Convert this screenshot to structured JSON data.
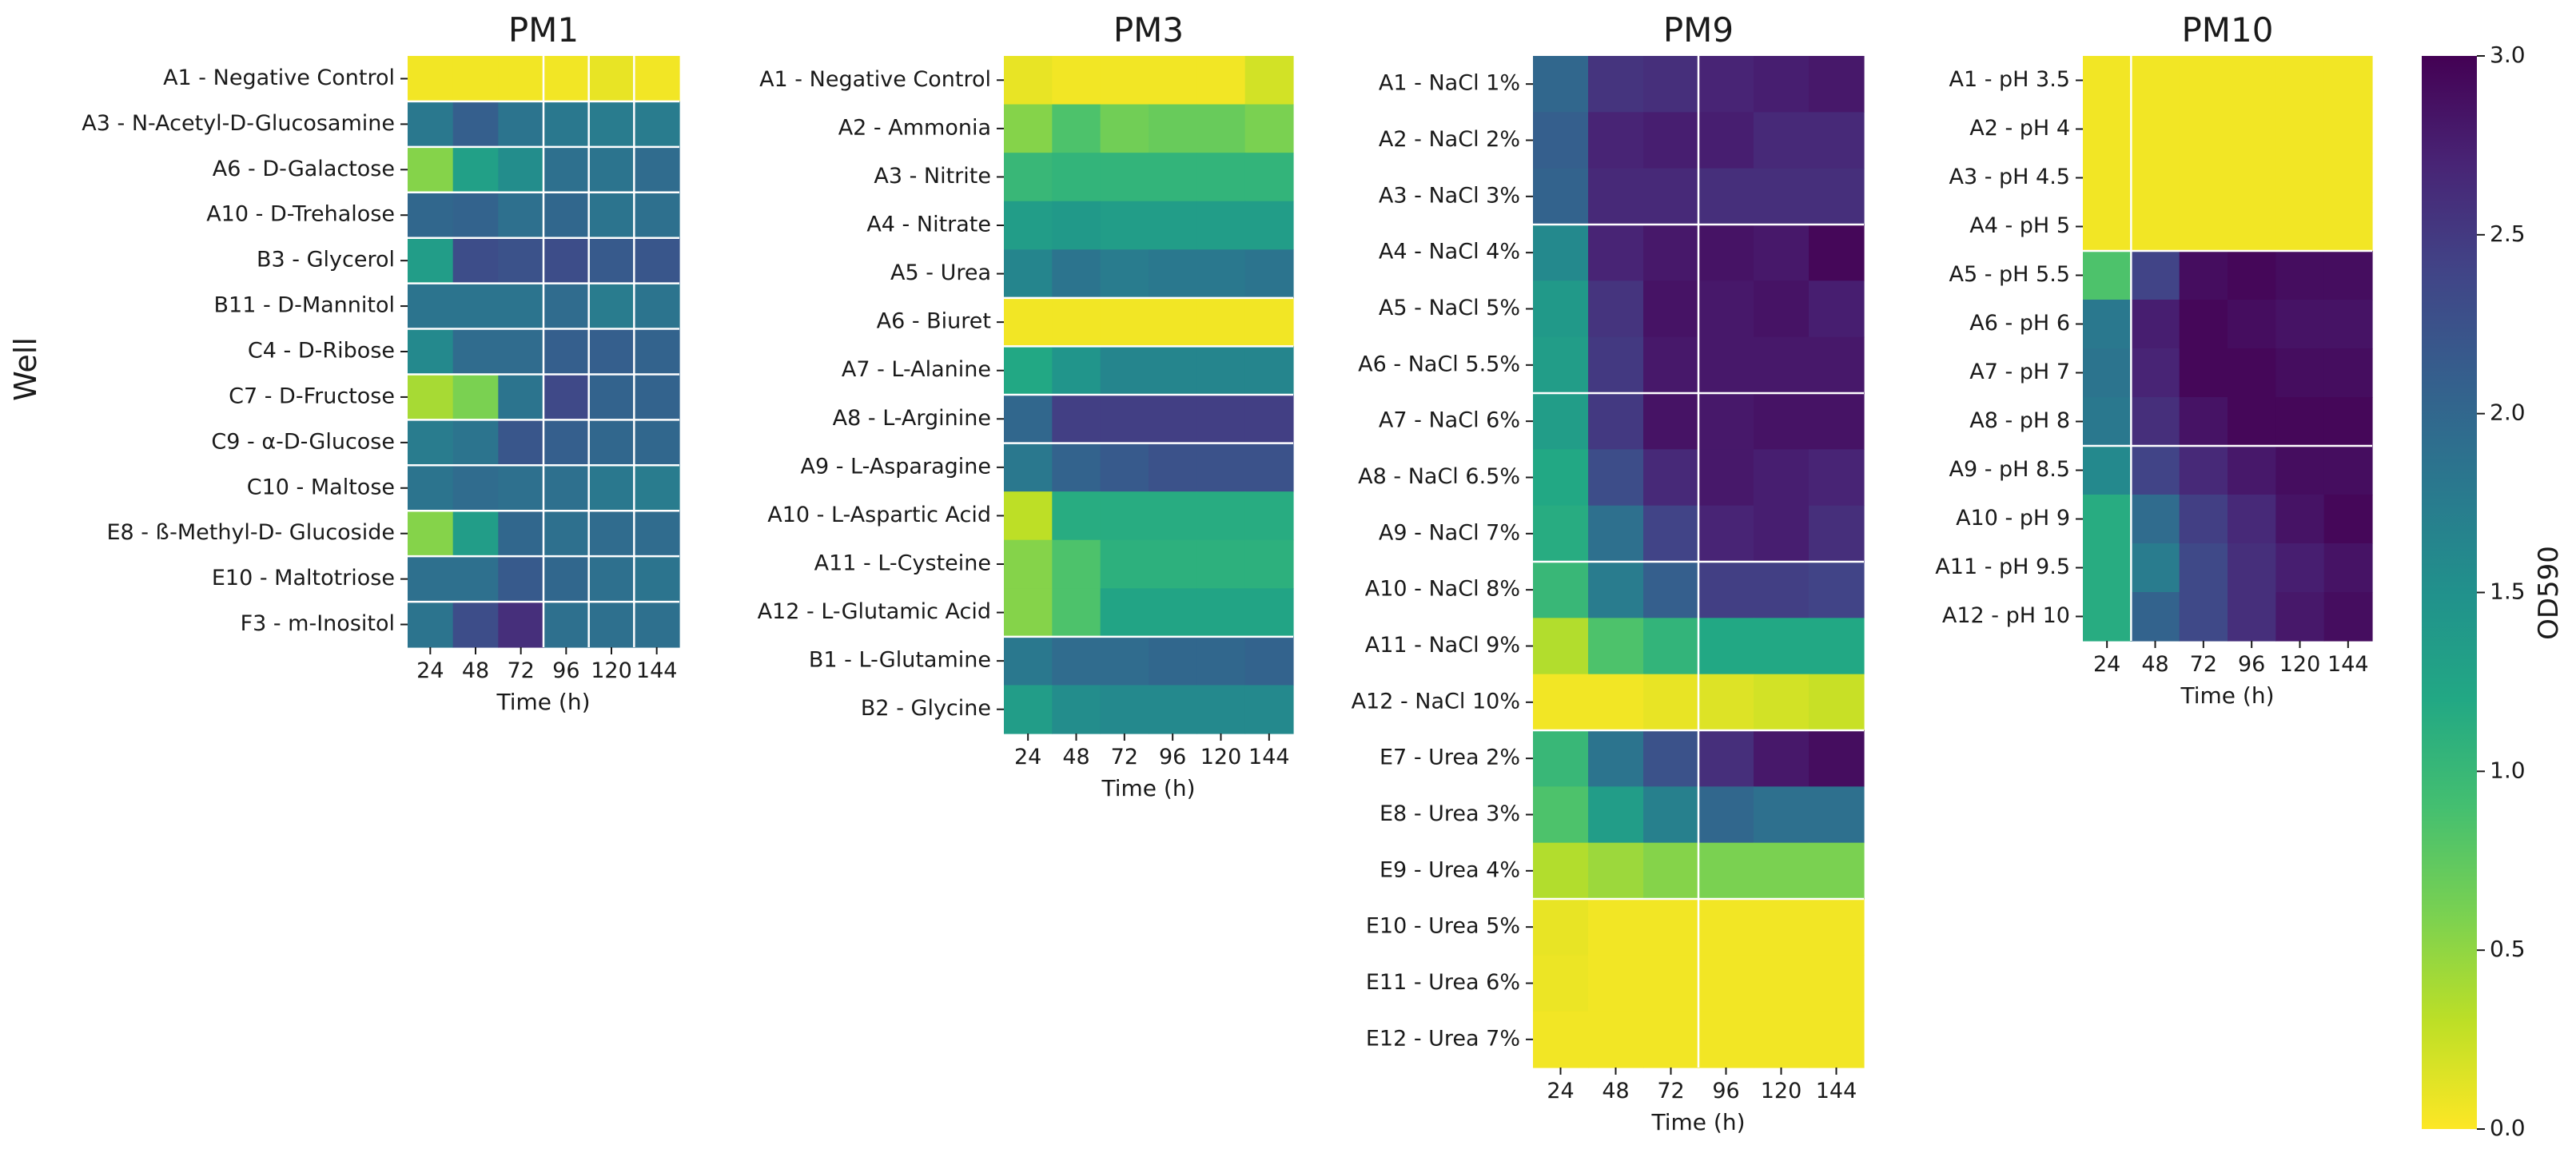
{
  "chart_data": {
    "type": "heatmap",
    "y_axis_label": "Well",
    "colorbar": {
      "label": "OD590",
      "min": 0.0,
      "max": 3.0,
      "ticks": [
        "0.0",
        "0.5",
        "1.0",
        "1.5",
        "2.0",
        "2.5",
        "3.0"
      ],
      "colormap": "viridis_r"
    },
    "panels": [
      {
        "title": "PM1",
        "xlabel": "Time (h)",
        "x": [
          "24",
          "48",
          "72",
          "96",
          "120",
          "144"
        ],
        "rows": [
          "A1 - Negative Control",
          "A3 - N-Acetyl-D-Glucosamine",
          "A6 - D-Galactose",
          "A10 - D-Trehalose",
          "B3 - Glycerol",
          "B11 - D-Mannitol",
          "C4 - D-Ribose",
          "C7 - D-Fructose",
          "C9 - α-D-Glucose",
          "C10 - Maltose",
          "E8 - ß-Methyl-D- Glucoside",
          "E10 - Maltotriose",
          "F3 - m-Inositol"
        ],
        "values": [
          [
            0.05,
            0.05,
            0.05,
            0.05,
            0.1,
            0.05
          ],
          [
            1.8,
            2.1,
            1.85,
            1.8,
            1.75,
            1.75
          ],
          [
            0.55,
            1.3,
            1.55,
            1.9,
            1.85,
            1.95
          ],
          [
            2.0,
            2.05,
            1.9,
            2.0,
            1.85,
            1.9
          ],
          [
            1.35,
            2.3,
            2.25,
            2.3,
            2.15,
            2.2
          ],
          [
            1.85,
            1.85,
            1.85,
            1.95,
            1.75,
            1.85
          ],
          [
            1.6,
            1.95,
            1.95,
            2.1,
            2.1,
            2.05
          ],
          [
            0.4,
            0.6,
            1.85,
            2.35,
            2.05,
            2.05
          ],
          [
            1.75,
            1.85,
            2.2,
            2.1,
            2.0,
            2.0
          ],
          [
            1.85,
            1.95,
            1.9,
            1.9,
            1.8,
            1.75
          ],
          [
            0.55,
            1.35,
            2.0,
            1.9,
            1.95,
            1.95
          ],
          [
            1.9,
            1.9,
            2.15,
            2.0,
            1.9,
            1.85
          ],
          [
            1.85,
            2.3,
            2.6,
            1.9,
            1.9,
            1.9
          ]
        ]
      },
      {
        "title": "PM3",
        "xlabel": "Time (h)",
        "x": [
          "24",
          "48",
          "72",
          "96",
          "120",
          "144"
        ],
        "rows": [
          "A1 - Negative Control",
          "A2 - Ammonia",
          "A3 - Nitrite",
          "A4 - Nitrate",
          "A5 - Urea",
          "A6 - Biuret",
          "A7 - L-Alanine",
          "A8 - L-Arginine",
          "A9 - L-Asparagine",
          "A10 - L-Aspartic Acid",
          "A11 - L-Cysteine",
          "A12 - L-Glutamic Acid",
          "B1 - L-Glutamine",
          "B2 - Glycine"
        ],
        "values": [
          [
            0.1,
            0.05,
            0.05,
            0.05,
            0.05,
            0.2
          ],
          [
            0.55,
            0.85,
            0.65,
            0.7,
            0.7,
            0.6
          ],
          [
            1.0,
            1.05,
            1.05,
            1.05,
            1.05,
            1.05
          ],
          [
            1.35,
            1.4,
            1.35,
            1.35,
            1.35,
            1.35
          ],
          [
            1.65,
            1.85,
            1.75,
            1.8,
            1.8,
            1.85
          ],
          [
            0.05,
            0.05,
            0.05,
            0.05,
            0.05,
            0.05
          ],
          [
            1.2,
            1.45,
            1.65,
            1.65,
            1.65,
            1.65
          ],
          [
            2.0,
            2.45,
            2.45,
            2.45,
            2.45,
            2.45
          ],
          [
            1.8,
            2.05,
            2.15,
            2.25,
            2.25,
            2.25
          ],
          [
            0.3,
            1.15,
            1.15,
            1.15,
            1.15,
            1.15
          ],
          [
            0.55,
            0.85,
            1.1,
            1.1,
            1.1,
            1.1
          ],
          [
            0.55,
            0.85,
            1.25,
            1.25,
            1.25,
            1.25
          ],
          [
            1.8,
            1.95,
            1.95,
            2.0,
            2.0,
            2.05
          ],
          [
            1.35,
            1.55,
            1.6,
            1.6,
            1.6,
            1.6
          ]
        ]
      },
      {
        "title": "PM9",
        "xlabel": "Time (h)",
        "x": [
          "24",
          "48",
          "72",
          "96",
          "120",
          "144"
        ],
        "rows": [
          "A1 - NaCl 1%",
          "A2 - NaCl 2%",
          "A3 - NaCl 3%",
          "A4 - NaCl 4%",
          "A5 - NaCl 5%",
          "A6 - NaCl 5.5%",
          "A7 - NaCl 6%",
          "A8 - NaCl 6.5%",
          "A9 - NaCl 7%",
          "A10 - NaCl 8%",
          "A11 - NaCl 9%",
          "A12 - NaCl 10%",
          "E7 - Urea 2%",
          "E8 - Urea 3%",
          "E9 - Urea 4%",
          "E10 - Urea 5%",
          "E11 - Urea 6%",
          "E12 - Urea 7%"
        ],
        "values": [
          [
            2.0,
            2.55,
            2.6,
            2.7,
            2.75,
            2.8
          ],
          [
            2.1,
            2.7,
            2.75,
            2.75,
            2.65,
            2.65
          ],
          [
            2.05,
            2.65,
            2.65,
            2.6,
            2.6,
            2.6
          ],
          [
            1.6,
            2.7,
            2.8,
            2.85,
            2.8,
            2.95
          ],
          [
            1.4,
            2.55,
            2.85,
            2.8,
            2.85,
            2.75
          ],
          [
            1.35,
            2.5,
            2.8,
            2.8,
            2.8,
            2.8
          ],
          [
            1.35,
            2.5,
            2.85,
            2.8,
            2.85,
            2.85
          ],
          [
            1.2,
            2.3,
            2.65,
            2.8,
            2.75,
            2.7
          ],
          [
            1.15,
            1.9,
            2.4,
            2.7,
            2.75,
            2.6
          ],
          [
            1.0,
            1.75,
            2.1,
            2.45,
            2.45,
            2.4
          ],
          [
            0.35,
            0.85,
            1.05,
            1.2,
            1.2,
            1.2
          ],
          [
            0.05,
            0.05,
            0.1,
            0.15,
            0.2,
            0.25
          ],
          [
            1.0,
            1.85,
            2.25,
            2.6,
            2.8,
            2.9
          ],
          [
            0.85,
            1.35,
            1.7,
            2.0,
            1.9,
            1.9
          ],
          [
            0.35,
            0.45,
            0.55,
            0.6,
            0.6,
            0.6
          ],
          [
            0.1,
            0.05,
            0.05,
            0.05,
            0.05,
            0.05
          ],
          [
            0.08,
            0.05,
            0.05,
            0.05,
            0.05,
            0.05
          ],
          [
            0.05,
            0.05,
            0.05,
            0.05,
            0.05,
            0.05
          ]
        ]
      },
      {
        "title": "PM10",
        "xlabel": "Time (h)",
        "x": [
          "24",
          "48",
          "72",
          "96",
          "120",
          "144"
        ],
        "rows": [
          "A1 - pH 3.5",
          "A2 - pH 4",
          "A3 - pH 4.5",
          "A4 - pH 5",
          "A5 - pH 5.5",
          "A6 - pH 6",
          "A7 - pH 7",
          "A8 - pH 8",
          "A9 - pH 8.5",
          "A10 - pH 9",
          "A11 - pH 9.5",
          "A12 - pH 10"
        ],
        "values": [
          [
            0.05,
            0.05,
            0.05,
            0.05,
            0.05,
            0.05
          ],
          [
            0.05,
            0.05,
            0.05,
            0.05,
            0.05,
            0.05
          ],
          [
            0.05,
            0.05,
            0.05,
            0.05,
            0.05,
            0.05
          ],
          [
            0.05,
            0.05,
            0.05,
            0.05,
            0.05,
            0.05
          ],
          [
            0.85,
            2.4,
            2.9,
            2.95,
            2.9,
            2.9
          ],
          [
            1.8,
            2.75,
            2.95,
            2.9,
            2.85,
            2.85
          ],
          [
            1.85,
            2.7,
            2.95,
            2.95,
            2.9,
            2.9
          ],
          [
            1.8,
            2.6,
            2.85,
            2.95,
            2.95,
            2.95
          ],
          [
            1.6,
            2.4,
            2.65,
            2.8,
            2.9,
            2.9
          ],
          [
            1.15,
            1.95,
            2.45,
            2.65,
            2.85,
            2.95
          ],
          [
            1.15,
            1.75,
            2.35,
            2.6,
            2.75,
            2.85
          ],
          [
            1.15,
            2.05,
            2.35,
            2.6,
            2.8,
            2.9
          ]
        ]
      }
    ]
  }
}
